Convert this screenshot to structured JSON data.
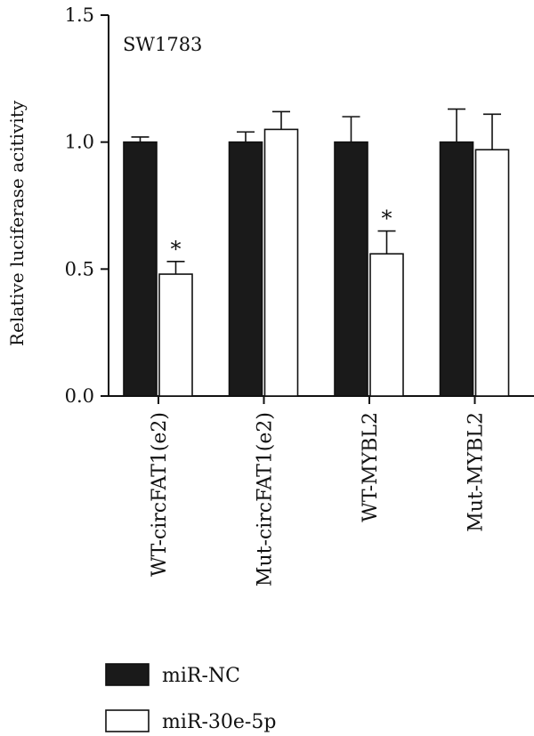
{
  "chart_data": {
    "type": "bar",
    "panel_label": "SW1783",
    "ylabel": "Relative luciferase acitivity",
    "ylim": [
      0,
      1.5
    ],
    "yticks": [
      "0.0",
      "0.5",
      "1.0",
      "1.5"
    ],
    "categories": [
      "WT-circFAT1(e2)",
      "Mut-circFAT1(e2)",
      "WT-MYBL2",
      "Mut-MYBL2"
    ],
    "series": [
      {
        "name": "miR-NC",
        "color": "#1a1a1a",
        "values": [
          1.0,
          1.0,
          1.0,
          1.0
        ],
        "errors": [
          0.02,
          0.04,
          0.1,
          0.13
        ]
      },
      {
        "name": "miR-30e-5p",
        "color": "#ffffff",
        "values": [
          0.48,
          1.05,
          0.56,
          0.97
        ],
        "errors": [
          0.05,
          0.07,
          0.09,
          0.14
        ]
      }
    ],
    "significance": {
      "symbol": "*",
      "marks": [
        {
          "series": 1,
          "category": 0
        },
        {
          "series": 1,
          "category": 2
        }
      ]
    },
    "legend_position": "bottom-left",
    "grid": false
  }
}
